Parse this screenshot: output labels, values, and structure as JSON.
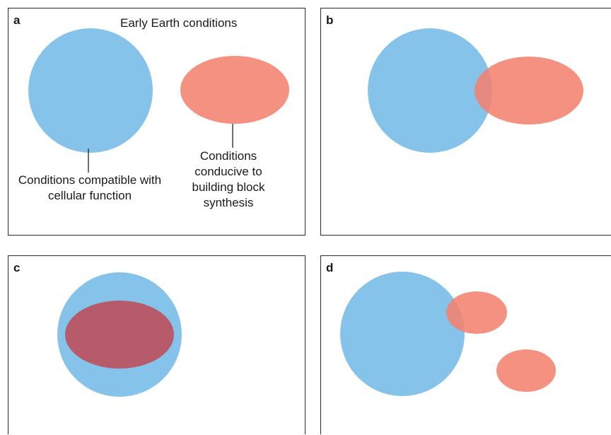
{
  "panels": {
    "a": {
      "label": "a",
      "title": "Early Earth conditions",
      "cellular_label": "Conditions compatible with cellular function",
      "synthesis_label": "Conditions conducive to building block synthesis"
    },
    "b": {
      "label": "b"
    },
    "c": {
      "label": "c"
    },
    "d": {
      "label": "d"
    }
  },
  "colors": {
    "cellular_function": "#85c3ea",
    "building_block_synthesis": "#f4826f",
    "overlap_dark": "#b75b6a"
  }
}
